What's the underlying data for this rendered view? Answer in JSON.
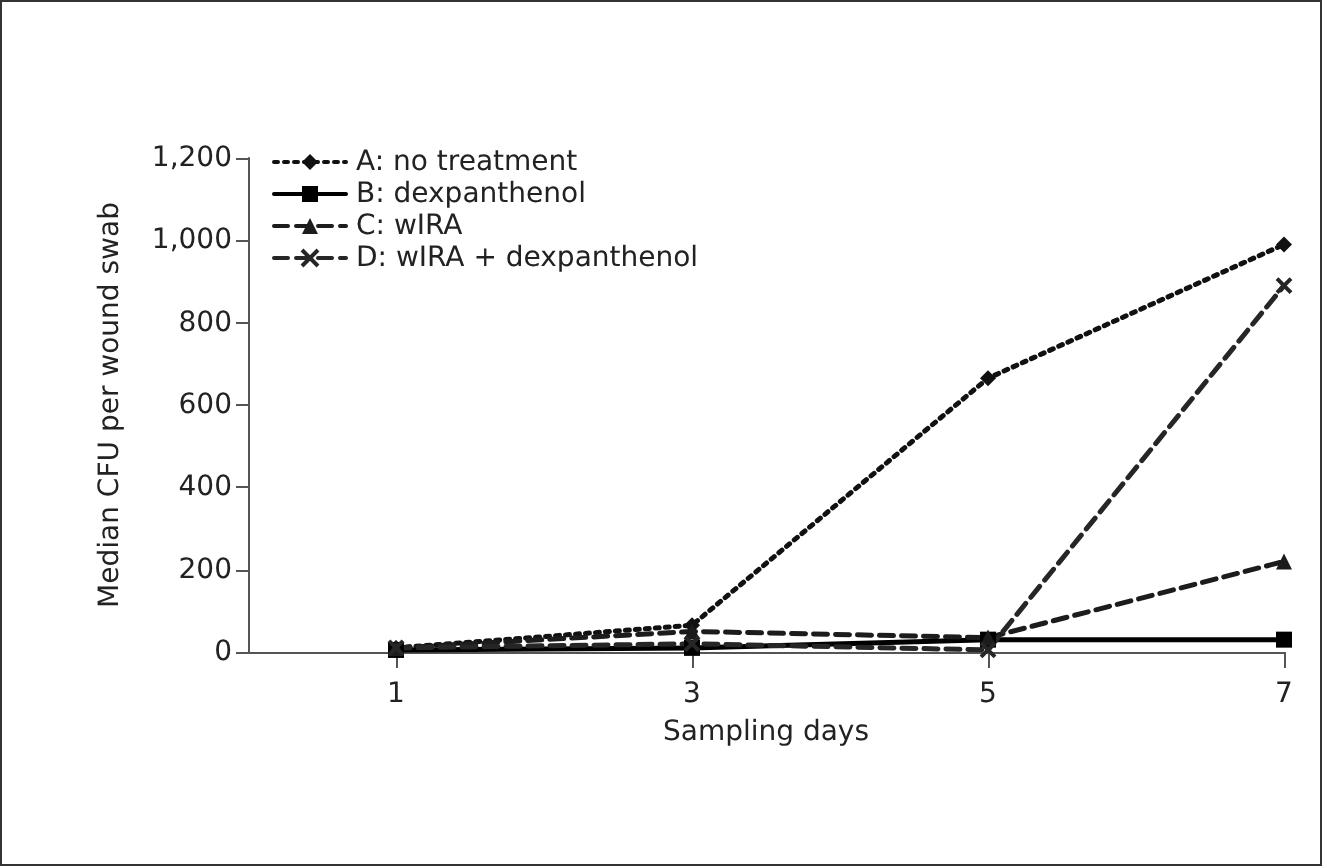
{
  "chart_data": {
    "type": "line",
    "xlabel": "Sampling days",
    "ylabel": "Median CFU per wound swab",
    "x": [
      1,
      3,
      5,
      7
    ],
    "xlim": [
      0,
      7
    ],
    "xticks": [
      1,
      3,
      5,
      7
    ],
    "ylim": [
      0,
      1200
    ],
    "yticks": [
      0,
      {
        "value": 200,
        "label": "200"
      },
      {
        "value": 400,
        "label": "400"
      },
      {
        "value": 600,
        "label": "600"
      },
      {
        "value": 800,
        "label": "800"
      },
      {
        "value": 1000,
        "label": "1,000"
      },
      {
        "value": 1200,
        "label": "1,200"
      }
    ],
    "grid": false,
    "legend": "top left",
    "series": [
      {
        "name": "A: no treatment",
        "color": "#111111",
        "values": [
          10,
          65,
          665,
          990
        ],
        "marker": "diamond",
        "line_style": "dotted"
      },
      {
        "name": "B: dexpanthenol",
        "color": "#000000",
        "values": [
          5,
          10,
          30,
          30
        ],
        "marker": "square",
        "line_style": "solid"
      },
      {
        "name": "C: wIRA",
        "color": "#1c1c1c",
        "values": [
          10,
          50,
          35,
          220
        ],
        "marker": "triangle",
        "line_style": "dashed"
      },
      {
        "name": "D: wIRA + dexpanthenol",
        "color": "#262626",
        "values": [
          10,
          20,
          5,
          890
        ],
        "marker": "cross",
        "line_style": "dashed"
      }
    ]
  }
}
